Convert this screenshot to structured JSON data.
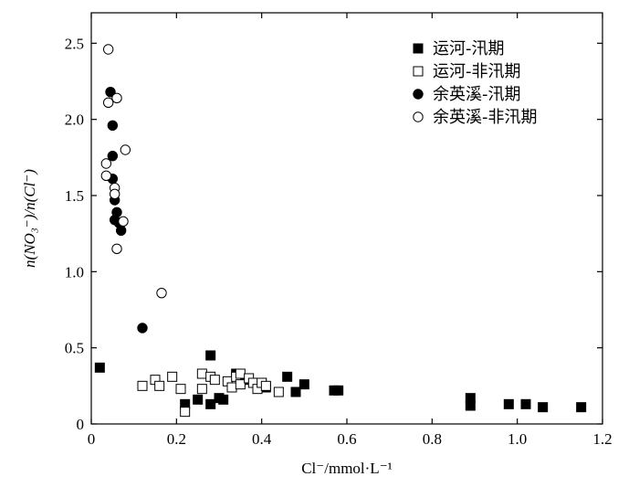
{
  "chart_data": {
    "type": "scatter",
    "xlabel": "Cl⁻/mmol·L⁻¹",
    "ylabel": "n(NO₃⁻)/n(Cl⁻)",
    "xlim": [
      0,
      1.2
    ],
    "ylim": [
      0,
      2.7
    ],
    "x_ticks": [
      0,
      0.2,
      0.4,
      0.6,
      0.8,
      1.0,
      1.2
    ],
    "x_tick_labels": [
      "0",
      "0.2",
      "0.4",
      "0.6",
      "0.8",
      "1.0",
      "1.2"
    ],
    "y_ticks": [
      0,
      0.5,
      1.0,
      1.5,
      2.0,
      2.5
    ],
    "y_tick_labels": [
      "0",
      "0.5",
      "1.0",
      "1.5",
      "2.0",
      "2.5"
    ],
    "grid": false,
    "legend_position": "top-right",
    "series": [
      {
        "name": "运河-汛期",
        "marker": "filled-square",
        "color": "#000000",
        "points": [
          [
            0.02,
            0.37
          ],
          [
            0.22,
            0.13
          ],
          [
            0.25,
            0.16
          ],
          [
            0.28,
            0.13
          ],
          [
            0.28,
            0.45
          ],
          [
            0.3,
            0.17
          ],
          [
            0.31,
            0.16
          ],
          [
            0.34,
            0.33
          ],
          [
            0.36,
            0.29
          ],
          [
            0.4,
            0.27
          ],
          [
            0.41,
            0.24
          ],
          [
            0.46,
            0.31
          ],
          [
            0.48,
            0.21
          ],
          [
            0.5,
            0.26
          ],
          [
            0.57,
            0.22
          ],
          [
            0.58,
            0.22
          ],
          [
            0.89,
            0.17
          ],
          [
            0.89,
            0.12
          ],
          [
            0.98,
            0.13
          ],
          [
            1.02,
            0.13
          ],
          [
            1.06,
            0.11
          ],
          [
            1.15,
            0.11
          ]
        ]
      },
      {
        "name": "运河-非汛期",
        "marker": "open-square",
        "color": "#000000",
        "points": [
          [
            0.12,
            0.25
          ],
          [
            0.15,
            0.29
          ],
          [
            0.16,
            0.25
          ],
          [
            0.19,
            0.31
          ],
          [
            0.21,
            0.23
          ],
          [
            0.22,
            0.08
          ],
          [
            0.26,
            0.33
          ],
          [
            0.26,
            0.23
          ],
          [
            0.28,
            0.31
          ],
          [
            0.29,
            0.29
          ],
          [
            0.32,
            0.28
          ],
          [
            0.33,
            0.24
          ],
          [
            0.34,
            0.31
          ],
          [
            0.35,
            0.26
          ],
          [
            0.35,
            0.33
          ],
          [
            0.37,
            0.3
          ],
          [
            0.38,
            0.27
          ],
          [
            0.39,
            0.23
          ],
          [
            0.4,
            0.27
          ],
          [
            0.41,
            0.25
          ],
          [
            0.44,
            0.21
          ]
        ]
      },
      {
        "name": "余英溪-汛期",
        "marker": "filled-circle",
        "color": "#000000",
        "points": [
          [
            0.045,
            2.18
          ],
          [
            0.05,
            1.96
          ],
          [
            0.05,
            1.76
          ],
          [
            0.05,
            1.61
          ],
          [
            0.055,
            1.47
          ],
          [
            0.055,
            1.34
          ],
          [
            0.06,
            1.39
          ],
          [
            0.065,
            1.32
          ],
          [
            0.07,
            1.27
          ],
          [
            0.12,
            0.63
          ]
        ]
      },
      {
        "name": "余英溪-非汛期",
        "marker": "open-circle",
        "color": "#000000",
        "points": [
          [
            0.04,
            2.46
          ],
          [
            0.04,
            2.11
          ],
          [
            0.06,
            2.14
          ],
          [
            0.08,
            1.8
          ],
          [
            0.035,
            1.71
          ],
          [
            0.035,
            1.63
          ],
          [
            0.055,
            1.55
          ],
          [
            0.055,
            1.51
          ],
          [
            0.075,
            1.33
          ],
          [
            0.06,
            1.15
          ],
          [
            0.165,
            0.86
          ]
        ]
      }
    ]
  }
}
